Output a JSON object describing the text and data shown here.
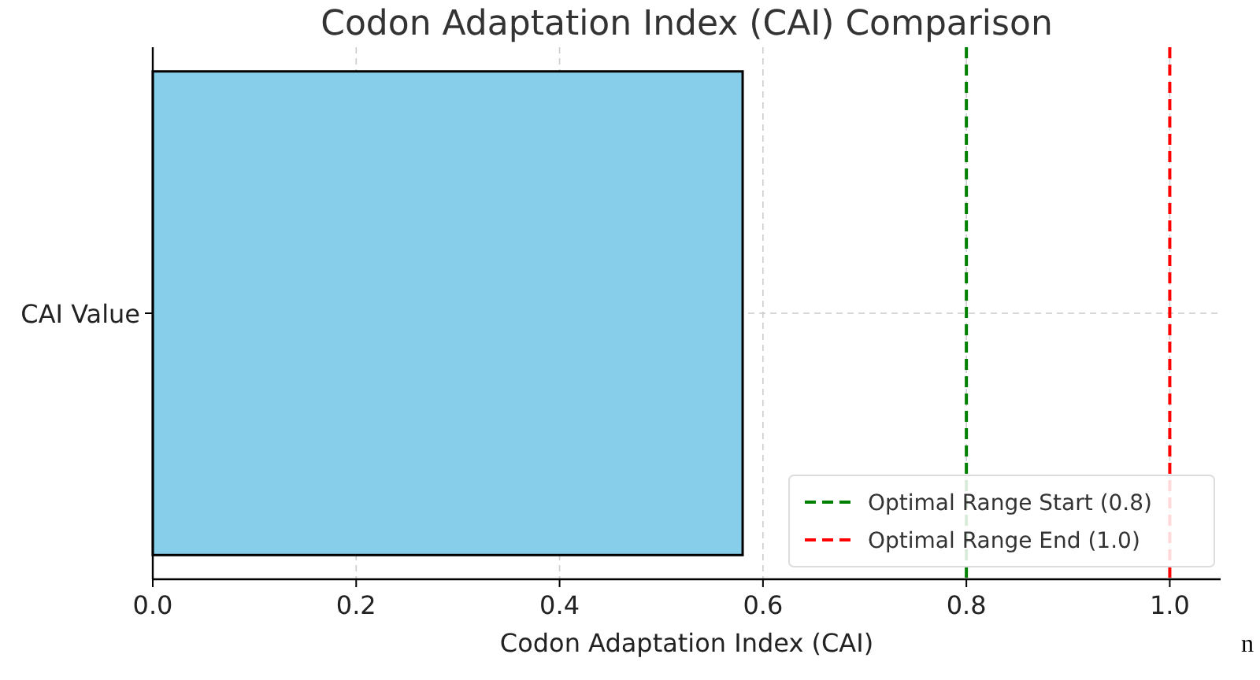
{
  "chart_data": {
    "type": "bar",
    "orientation": "horizontal",
    "title": "Codon Adaptation Index (CAI) Comparison",
    "xlabel": "Codon Adaptation Index (CAI)",
    "categories": [
      "CAI Value"
    ],
    "values": [
      0.58
    ],
    "color": "#87ceeb",
    "xlim": [
      0,
      1.05
    ],
    "xticks": [
      {
        "value": 0,
        "label": "0.0"
      },
      {
        "value": 0.2,
        "label": "0.2"
      },
      {
        "value": 0.4,
        "label": "0.4"
      },
      {
        "value": 0.6,
        "label": "0.6"
      },
      {
        "value": 0.8,
        "label": "0.8"
      },
      {
        "value": 1,
        "label": "1.0"
      }
    ],
    "grid": true,
    "legend": "bottom right",
    "ref_lines": [
      {
        "axis": "x",
        "value": 0.8,
        "label": "Optimal Range Start (0.8)",
        "color": "#008000",
        "line_style": "dashed"
      },
      {
        "axis": "x",
        "value": 1,
        "label": "Optimal Range End (1.0)",
        "color": "#ff0000",
        "line_style": "dashed"
      }
    ],
    "annotations": [
      "n"
    ]
  }
}
